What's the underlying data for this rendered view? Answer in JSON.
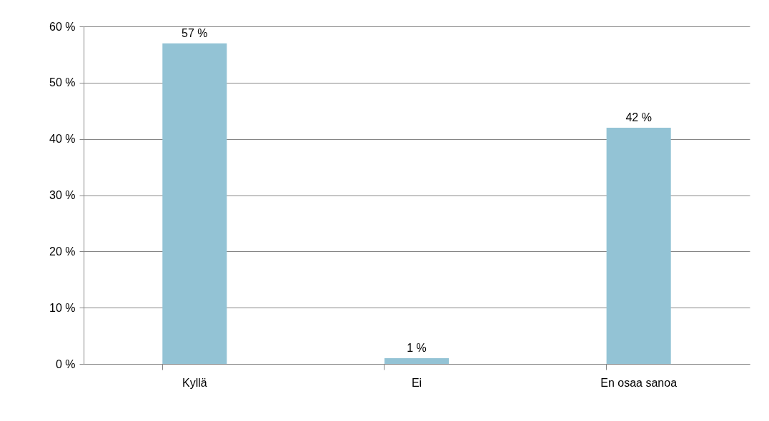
{
  "chart_data": {
    "type": "bar",
    "categories": [
      "Kyllä",
      "Ei",
      "En osaa sanoa"
    ],
    "values": [
      57,
      1,
      42
    ],
    "value_labels": [
      "57 %",
      "1 %",
      "42 %"
    ],
    "color": "#93c3d5",
    "ylim": [
      0,
      60
    ],
    "yticks": [
      {
        "value": 0,
        "label": "0 %"
      },
      {
        "value": 10,
        "label": "10 %"
      },
      {
        "value": 20,
        "label": "20 %"
      },
      {
        "value": 30,
        "label": "30 %"
      },
      {
        "value": 40,
        "label": "40 %"
      },
      {
        "value": 50,
        "label": "50 %"
      },
      {
        "value": 60,
        "label": "60 %"
      }
    ],
    "grid": "y"
  }
}
